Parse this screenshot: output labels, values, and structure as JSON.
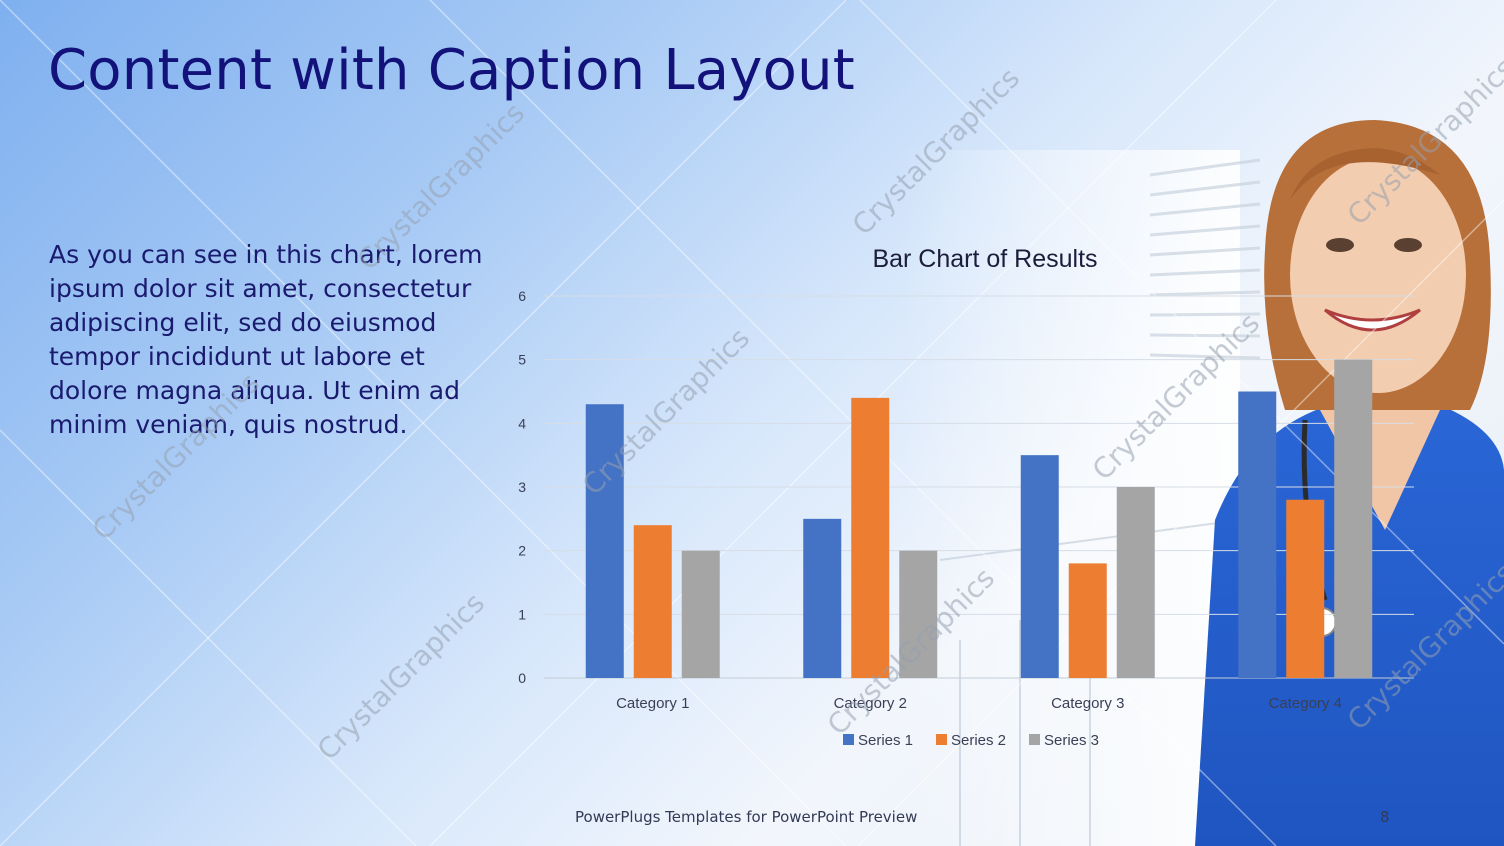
{
  "slide": {
    "title": "Content with Caption Layout",
    "caption": "As you can see in this chart, lorem ipsum dolor sit amet, consectetur adipiscing elit, sed do eiusmod tempor incididunt ut labore et dolore magna aliqua. Ut enim ad minim veniam, quis nostrud.",
    "footer": "PowerPlugs Templates for PowerPoint Preview",
    "page_number": "8",
    "watermark": "CrystalGraphics"
  },
  "chart_data": {
    "type": "bar",
    "title": "Bar Chart of Results",
    "categories": [
      "Category 1",
      "Category 2",
      "Category 3",
      "Category 4"
    ],
    "series": [
      {
        "name": "Series 1",
        "values": [
          4.3,
          2.5,
          3.5,
          4.5
        ],
        "color": "#4472c4"
      },
      {
        "name": "Series 2",
        "values": [
          2.4,
          4.4,
          1.8,
          2.8
        ],
        "color": "#ed7d31"
      },
      {
        "name": "Series 3",
        "values": [
          2,
          2,
          3,
          5
        ],
        "color": "#a5a5a5"
      }
    ],
    "ylim": [
      0,
      6
    ],
    "yticks": [
      "0",
      "1",
      "2",
      "3",
      "4",
      "5",
      "6"
    ],
    "grid": true,
    "legend": "bottom"
  },
  "colors": {
    "title": "#12127a",
    "caption": "#1a1a6e"
  }
}
